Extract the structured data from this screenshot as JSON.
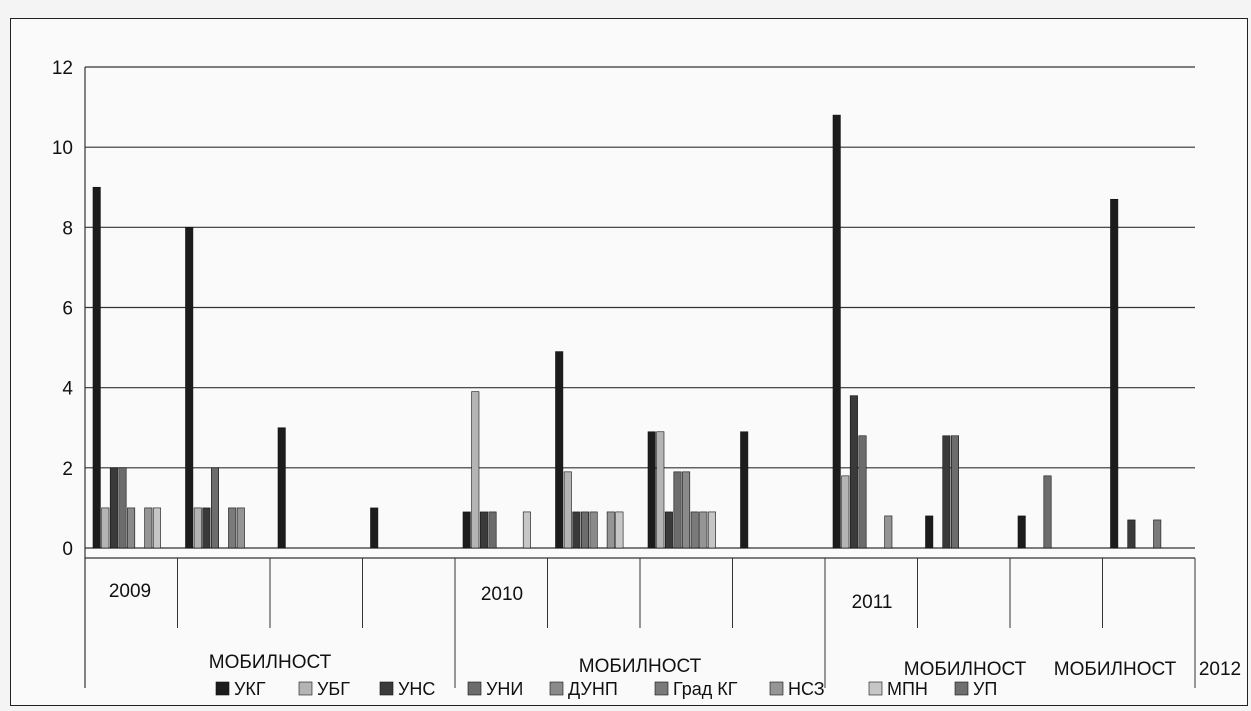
{
  "chart_data": {
    "type": "bar",
    "title": "",
    "xlabel": "",
    "ylabel": "",
    "ylim": [
      0,
      12
    ],
    "yticks": [
      0,
      2,
      4,
      6,
      8,
      10,
      12
    ],
    "grid": true,
    "legend_position": "bottom",
    "category_labels": [
      {
        "text": "2009",
        "kind": "year"
      },
      {
        "text": "2010",
        "kind": "year"
      },
      {
        "text": "2011",
        "kind": "year"
      },
      {
        "text": "МОБИЛНОСТ",
        "kind": "group"
      },
      {
        "text": "МОБИЛНОСТ",
        "kind": "group"
      },
      {
        "text": "МОБИЛНОСТ",
        "kind": "group"
      },
      {
        "text": "МОБИЛНОСТ",
        "kind": "group"
      },
      {
        "text": "2012",
        "kind": "year"
      }
    ],
    "series": [
      {
        "name": "УКГ",
        "color": "#1c1c1c"
      },
      {
        "name": "УБГ",
        "color": "#b4b4b4"
      },
      {
        "name": "УНС",
        "color": "#3a3a3a"
      },
      {
        "name": "УНИ",
        "color": "#6c6c6c"
      },
      {
        "name": "ДУНП",
        "color": "#8a8a8a"
      },
      {
        "name": "Град КГ",
        "color": "#7a7a7a"
      },
      {
        "name": "НСЗ",
        "color": "#959595"
      },
      {
        "name": "МПН",
        "color": "#c6c6c6"
      },
      {
        "name": "УП",
        "color": "#6e6e6e"
      }
    ],
    "groups": [
      [
        9,
        1,
        2,
        2,
        1,
        0,
        1,
        1,
        0
      ],
      [
        8,
        1,
        1,
        2,
        0,
        1,
        1,
        0,
        0
      ],
      [
        3,
        0,
        0,
        0,
        0,
        0,
        0,
        0,
        0
      ],
      [
        1,
        0,
        0,
        0,
        0,
        0,
        0,
        0,
        0
      ],
      [
        0.9,
        3.9,
        0.9,
        0.9,
        0,
        0,
        0,
        0.9,
        0
      ],
      [
        4.9,
        1.9,
        0.9,
        0.9,
        0.9,
        0,
        0.9,
        0.9,
        0
      ],
      [
        2.9,
        2.9,
        0.9,
        1.9,
        1.9,
        0.9,
        0.9,
        0.9,
        0
      ],
      [
        2.9,
        0,
        0,
        0,
        0,
        0,
        0,
        0,
        0
      ],
      [
        10.8,
        1.8,
        3.8,
        2.8,
        0,
        0,
        0.8,
        0,
        0
      ],
      [
        0.8,
        0,
        2.8,
        2.8,
        0,
        0,
        0,
        0,
        0
      ],
      [
        0.8,
        0,
        0,
        1.8,
        0,
        0,
        0,
        0,
        0
      ],
      [
        8.7,
        0,
        0.7,
        0,
        0,
        0.7,
        0,
        0,
        0
      ]
    ]
  }
}
